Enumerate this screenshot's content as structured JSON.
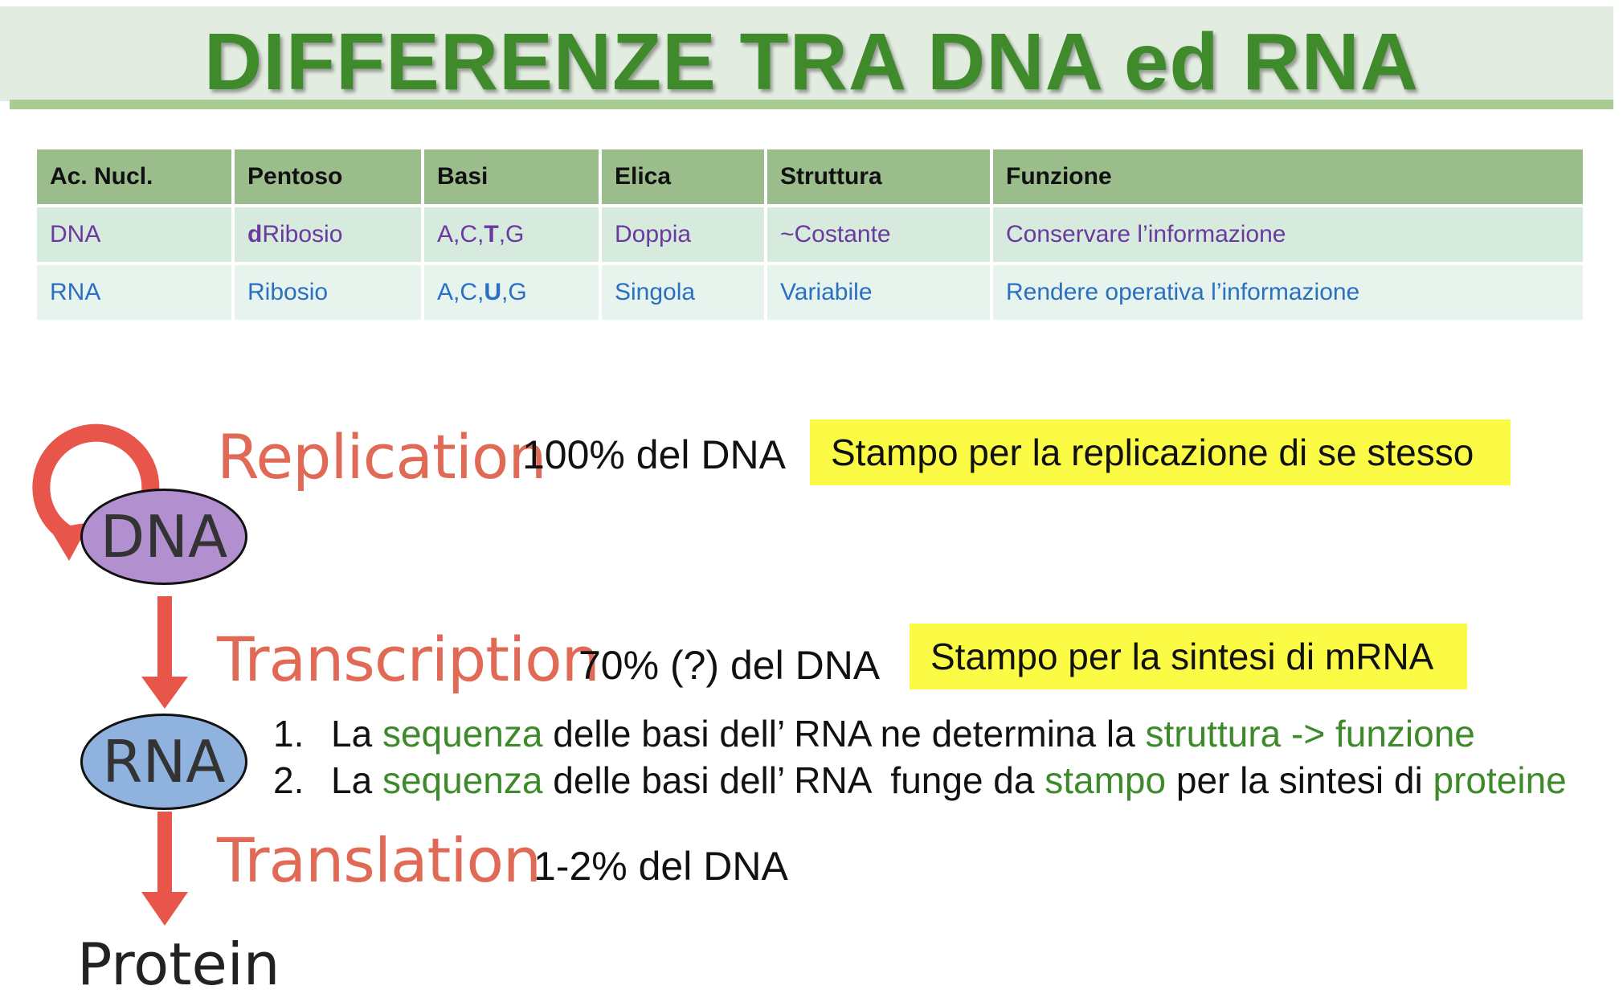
{
  "title": "DIFFERENZE TRA DNA ed RNA",
  "table": {
    "headers": [
      "Ac. Nucl.",
      "Pentoso",
      "Basi",
      "Elica",
      "Struttura",
      "Funzione"
    ],
    "rows": [
      {
        "acido": "DNA",
        "pentoso_prefix": "d",
        "pentoso_rest": "Ribosio",
        "basi_a": "A,C,",
        "basi_b": "T",
        "basi_c": ",G",
        "elica": "Doppia",
        "struttura": "~Costante",
        "funzione": "Conservare l’informazione"
      },
      {
        "acido": "RNA",
        "pentoso": "Ribosio",
        "basi_a": "A,C,",
        "basi_b": "U",
        "basi_c": ",G",
        "elica": "Singola",
        "struttura": "Variabile",
        "funzione": "Rendere operativa l’informazione"
      }
    ]
  },
  "diagram": {
    "dna": "DNA",
    "rna": "RNA",
    "protein": "Protein",
    "replication": "Replication",
    "transcription": "Transcription",
    "translation": "Translation"
  },
  "percent": {
    "replication": "100% del DNA",
    "transcription": "70% (?) del DNA",
    "translation": "1-2% del DNA"
  },
  "notes": {
    "replication": "Stampo per la replicazione di se stesso",
    "transcription": "Stampo per la sintesi di mRNA"
  },
  "list": [
    {
      "num": "1.",
      "t1": "La ",
      "g1": "sequenza",
      "t2": " delle basi dell’ RNA ne determina la ",
      "g2": "struttura -> funzione"
    },
    {
      "num": "2.",
      "t1": "La ",
      "g1": "sequenza",
      "t2": " delle basi dell’ RNA  funge da ",
      "g2": "stampo",
      "t3": " per la sintesi di ",
      "g3": "proteine"
    }
  ],
  "colors": {
    "title": "#3f8a2a",
    "header": "#9bbd8b",
    "dna_row_text": "#6a3a9e",
    "rna_row_text": "#2a6fc2",
    "arrow": "#e8554a",
    "dna_oval": "#b28fce",
    "rna_oval": "#8fb3de",
    "highlight": "#fbfb46"
  }
}
